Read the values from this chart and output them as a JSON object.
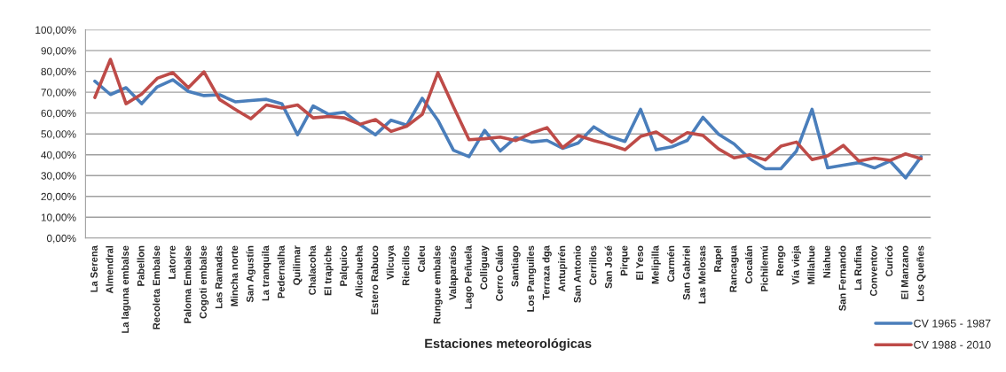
{
  "chart_data": {
    "type": "line",
    "xlabel": "Estaciones meteorológicas",
    "categories": [
      "La Serena",
      "Almendral",
      "La laguna embalse",
      "Pabellon",
      "Recoleta Embalse",
      "Latorre",
      "Paloma Embalse",
      "Cogoti embalse",
      "Las Ramadas",
      "Mincha norte",
      "San Agustín",
      "La tranquila",
      "Pedernalha",
      "Quilimar",
      "Chalacoha",
      "El trapiche",
      "Palquico",
      "Alicahueha",
      "Estero Rabuco",
      "Vilcuya",
      "Riecillos",
      "Caleu",
      "Rungue embalse",
      "Valaparaíso",
      "Lago Peñuela",
      "Colliguay",
      "Cerro Calán",
      "Santiago",
      "Los Panguiles",
      "Terraza dga",
      "Antupirén",
      "San Antonio",
      "Cerrillos",
      "San José",
      "Pirque",
      "El Yeso",
      "Melipilla",
      "Carmén",
      "San Gabriel",
      "Las Melosas",
      "Rapel",
      "Rancagua",
      "Cocalán",
      "Pichilemú",
      "Rengo",
      "Vía vieja",
      "Millahue",
      "Niahue",
      "San Fernando",
      "La Rufina",
      "Conventov",
      "Curicó",
      "El Manzano",
      "Los Queñes"
    ],
    "series": [
      {
        "name": "CV 1965 - 1987",
        "color": "#4a7ebb",
        "values": [
          75.3,
          68.9,
          72.2,
          64.5,
          72.6,
          76.0,
          70.4,
          68.4,
          68.8,
          65.4,
          66.0,
          66.6,
          64.4,
          49.6,
          63.4,
          59.4,
          60.4,
          54.6,
          49.6,
          56.6,
          54.2,
          67.1,
          56.6,
          42.2,
          39.1,
          51.7,
          41.8,
          48.3,
          46.1,
          46.9,
          43.1,
          45.6,
          53.4,
          48.8,
          46.4,
          61.8,
          42.4,
          43.8,
          46.9,
          58.0,
          49.9,
          45.2,
          38.1,
          33.3,
          33.3,
          41.8,
          61.8,
          33.7,
          35.0,
          36.2,
          33.7,
          37.0,
          28.9,
          39.1
        ]
      },
      {
        "name": "CV 1988 - 2010",
        "color": "#be4b48",
        "values": [
          67.5,
          85.8,
          64.5,
          69.1,
          76.7,
          79.4,
          72.2,
          79.8,
          66.5,
          61.8,
          57.3,
          63.9,
          62.4,
          63.9,
          57.7,
          58.4,
          57.7,
          54.6,
          56.9,
          51.2,
          53.7,
          59.4,
          79.4,
          63.1,
          47.2,
          47.7,
          48.5,
          46.8,
          50.4,
          53.0,
          43.4,
          49.2,
          46.8,
          44.9,
          42.4,
          48.8,
          50.9,
          46.1,
          50.6,
          49.3,
          42.8,
          38.5,
          40.0,
          37.5,
          44.1,
          46.1,
          37.7,
          39.5,
          44.5,
          37.0,
          38.4,
          37.3,
          40.4,
          38.1
        ]
      }
    ],
    "ylim": [
      0,
      100
    ],
    "yticks": [
      {
        "value": 0,
        "label": "0,00%"
      },
      {
        "value": 10,
        "label": "10,00%"
      },
      {
        "value": 20,
        "label": "20,00%"
      },
      {
        "value": 30,
        "label": "30,00%"
      },
      {
        "value": 40,
        "label": "40,00%"
      },
      {
        "value": 50,
        "label": "50,00%"
      },
      {
        "value": 60,
        "label": "60,00%"
      },
      {
        "value": 70,
        "label": "70,00%"
      },
      {
        "value": 80,
        "label": "80,00%"
      },
      {
        "value": 90,
        "label": "90,00%"
      },
      {
        "value": 100,
        "label": "100,00%"
      }
    ],
    "grid": "y",
    "legend": "bottom right",
    "marker": "none",
    "line_style": "solid"
  }
}
